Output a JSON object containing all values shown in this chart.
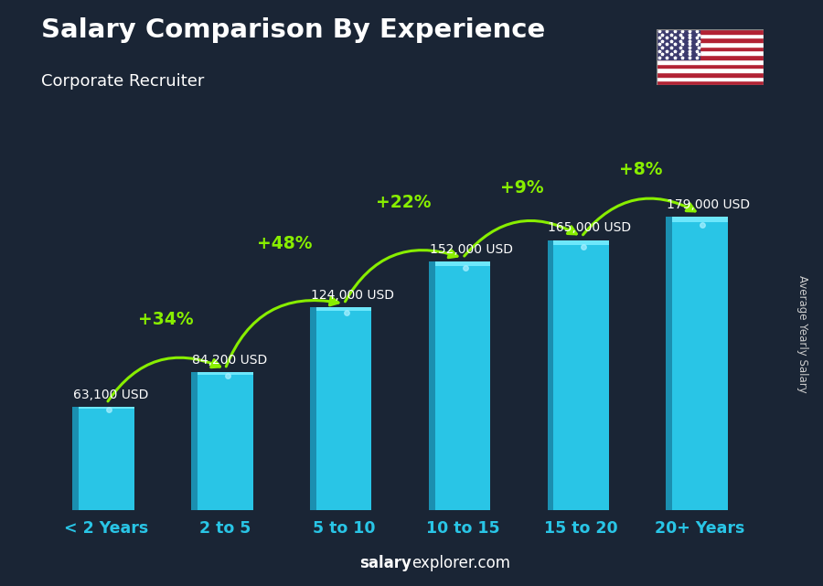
{
  "title": "Salary Comparison By Experience",
  "subtitle": "Corporate Recruiter",
  "categories": [
    "< 2 Years",
    "2 to 5",
    "5 to 10",
    "10 to 15",
    "15 to 20",
    "20+ Years"
  ],
  "values": [
    63100,
    84200,
    124000,
    152000,
    165000,
    179000
  ],
  "labels": [
    "63,100 USD",
    "84,200 USD",
    "124,000 USD",
    "152,000 USD",
    "165,000 USD",
    "179,000 USD"
  ],
  "pct_changes": [
    "+34%",
    "+48%",
    "+22%",
    "+9%",
    "+8%"
  ],
  "bar_face_color": "#29c5e6",
  "bar_left_color": "#1b8fb0",
  "bar_top_color": "#55d8f0",
  "bar_highlight_color": "#7aeeff",
  "bg_color": "#1a2535",
  "title_color": "#ffffff",
  "subtitle_color": "#ffffff",
  "label_color": "#ffffff",
  "pct_color": "#88ee00",
  "xlabel_color": "#29c5e6",
  "footer_salary_color": "#ffffff",
  "footer_explorer_color": "#ffffff",
  "ylabel_text": "Average Yearly Salary",
  "ylim": [
    0,
    215000
  ],
  "footer_bold": "salary",
  "footer_normal": "explorer.com"
}
